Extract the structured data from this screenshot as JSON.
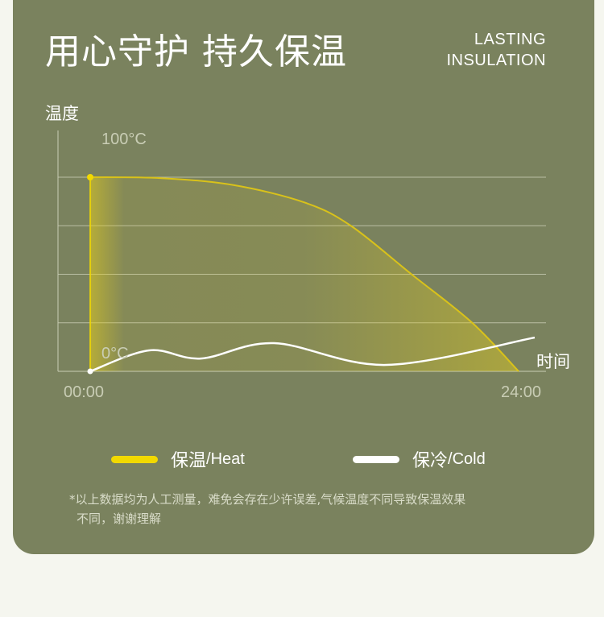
{
  "header": {
    "title": "用心守护 持久保温",
    "subtitle_line1": "LASTING",
    "subtitle_line2": "INSULATION"
  },
  "chart_data": {
    "type": "line",
    "ylabel": "温度",
    "xlabel": "时间",
    "y_tick_labels": [
      "100°C",
      "0°C"
    ],
    "x_tick_labels": [
      "00:00",
      "24:00"
    ],
    "xlim": [
      0,
      24
    ],
    "ylim": [
      0,
      100
    ],
    "grid": true,
    "series": [
      {
        "name": "保温/Heat",
        "color": "#f2d900",
        "x": [
          0,
          4,
          8,
          12,
          14.6,
          18,
          21.4,
          24
        ],
        "y": [
          100,
          99.5,
          96,
          87,
          75,
          50,
          25,
          0
        ]
      },
      {
        "name": "保冷/Cold",
        "color": "#ffffff",
        "x": [
          0,
          3.3,
          6.2,
          10.3,
          16.6,
          24.9
        ],
        "y": [
          0,
          10.8,
          6.6,
          14.5,
          3.3,
          17.4
        ]
      }
    ],
    "legend": {
      "position": "bottom",
      "items": [
        {
          "zh": "保温",
          "en": "/Heat",
          "color": "#f2d900"
        },
        {
          "zh": "保冷",
          "en": "/Cold",
          "color": "#ffffff"
        }
      ]
    }
  },
  "footnote": {
    "line1": "*以上数据均为人工测量，难免会存在少许误差,气候温度不同导致保温效果",
    "line2": "不同，谢谢理解"
  }
}
